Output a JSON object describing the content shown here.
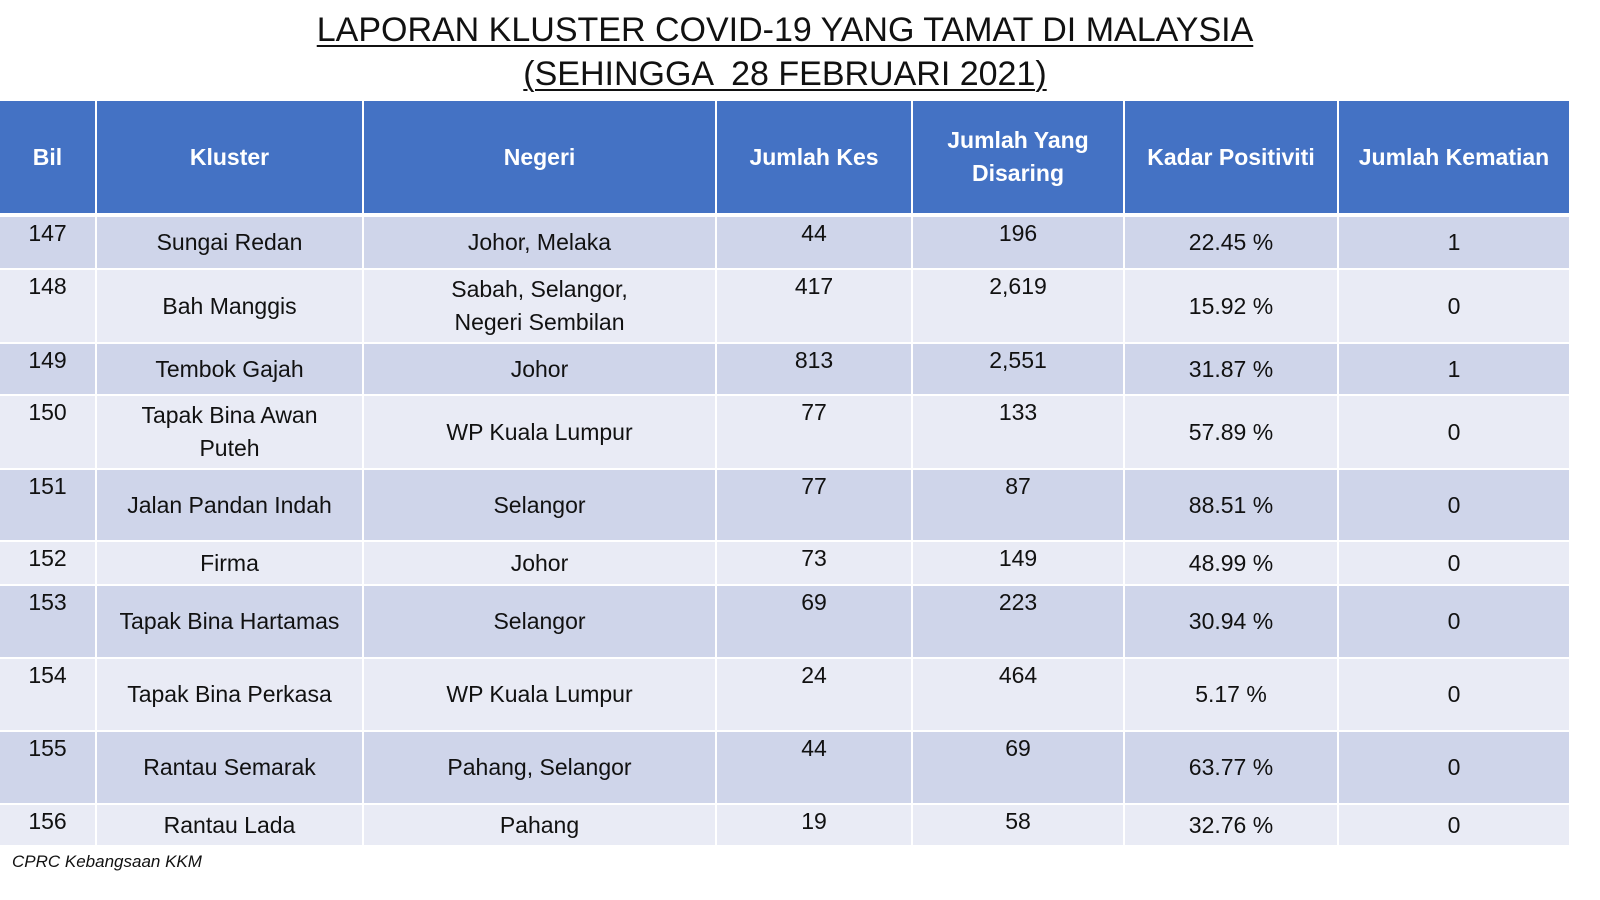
{
  "title": {
    "line1": "LAPORAN KLUSTER COVID-19 YANG TAMAT DI MALAYSIA",
    "line2": "(SEHINGGA  28 FEBRUARI 2021)"
  },
  "table": {
    "headers": {
      "bil": "Bil",
      "kluster": "Kluster",
      "negeri": "Negeri",
      "jumlah_kes": "Jumlah Kes",
      "jumlah_disaring_1": "Jumlah Yang",
      "jumlah_disaring_2": "Disaring",
      "kadar": "Kadar Positiviti",
      "kematian": "Jumlah Kematian"
    },
    "rows": [
      {
        "bil": "147",
        "kluster": [
          "Sungai Redan"
        ],
        "negeri": [
          "Johor, Melaka"
        ],
        "kes": "44",
        "disaring": "196",
        "kadar": "22.45 %",
        "kematian": "1"
      },
      {
        "bil": "148",
        "kluster": [
          "Bah Manggis"
        ],
        "negeri": [
          "Sabah, Selangor,",
          "Negeri Sembilan"
        ],
        "kes": "417",
        "disaring": "2,619",
        "kadar": "15.92 %",
        "kematian": "0"
      },
      {
        "bil": "149",
        "kluster": [
          "Tembok Gajah"
        ],
        "negeri": [
          "Johor"
        ],
        "kes": "813",
        "disaring": "2,551",
        "kadar": "31.87 %",
        "kematian": "1"
      },
      {
        "bil": "150",
        "kluster": [
          "Tapak Bina Awan",
          "Puteh"
        ],
        "negeri": [
          "WP Kuala Lumpur"
        ],
        "kes": "77",
        "disaring": "133",
        "kadar": "57.89 %",
        "kematian": "0"
      },
      {
        "bil": "151",
        "kluster": [
          "Jalan Pandan Indah"
        ],
        "negeri": [
          "Selangor"
        ],
        "kes": "77",
        "disaring": "87",
        "kadar": "88.51 %",
        "kematian": "0"
      },
      {
        "bil": "152",
        "kluster": [
          "Firma"
        ],
        "negeri": [
          "Johor"
        ],
        "kes": "73",
        "disaring": "149",
        "kadar": "48.99 %",
        "kematian": "0"
      },
      {
        "bil": "153",
        "kluster": [
          "Tapak Bina Hartamas"
        ],
        "negeri": [
          "Selangor"
        ],
        "kes": "69",
        "disaring": "223",
        "kadar": "30.94 %",
        "kematian": "0"
      },
      {
        "bil": "154",
        "kluster": [
          "Tapak Bina Perkasa"
        ],
        "negeri": [
          "WP Kuala Lumpur"
        ],
        "kes": "24",
        "disaring": "464",
        "kadar": "5.17 %",
        "kematian": "0"
      },
      {
        "bil": "155",
        "kluster": [
          "Rantau Semarak"
        ],
        "negeri": [
          "Pahang, Selangor"
        ],
        "kes": "44",
        "disaring": "69",
        "kadar": "63.77 %",
        "kematian": "0"
      },
      {
        "bil": "156",
        "kluster": [
          "Rantau Lada"
        ],
        "negeri": [
          "Pahang"
        ],
        "kes": "19",
        "disaring": "58",
        "kadar": "32.76 %",
        "kematian": "0"
      }
    ]
  },
  "footer": {
    "source": "CPRC Kebangsaan KKM"
  }
}
